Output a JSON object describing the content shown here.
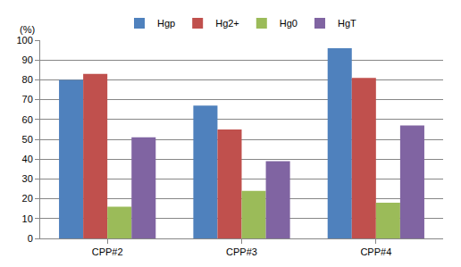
{
  "chart_data": {
    "type": "bar",
    "ylabel": "(%)",
    "categories": [
      "CPP#2",
      "CPP#3",
      "CPP#4"
    ],
    "series": [
      {
        "name": "Hgp",
        "color": "#4f81bd",
        "values": [
          80,
          67,
          96
        ]
      },
      {
        "name": "Hg2+",
        "color": "#c0504d",
        "values": [
          83,
          55,
          81
        ]
      },
      {
        "name": "Hg0",
        "color": "#9bbb59",
        "values": [
          16,
          24,
          18
        ]
      },
      {
        "name": "HgT",
        "color": "#8064a2",
        "values": [
          51,
          39,
          57
        ]
      }
    ],
    "ylim": [
      0,
      100
    ],
    "yticks": [
      0,
      10,
      20,
      30,
      40,
      50,
      60,
      70,
      80,
      90,
      100
    ],
    "grid": true,
    "legend": "top"
  }
}
